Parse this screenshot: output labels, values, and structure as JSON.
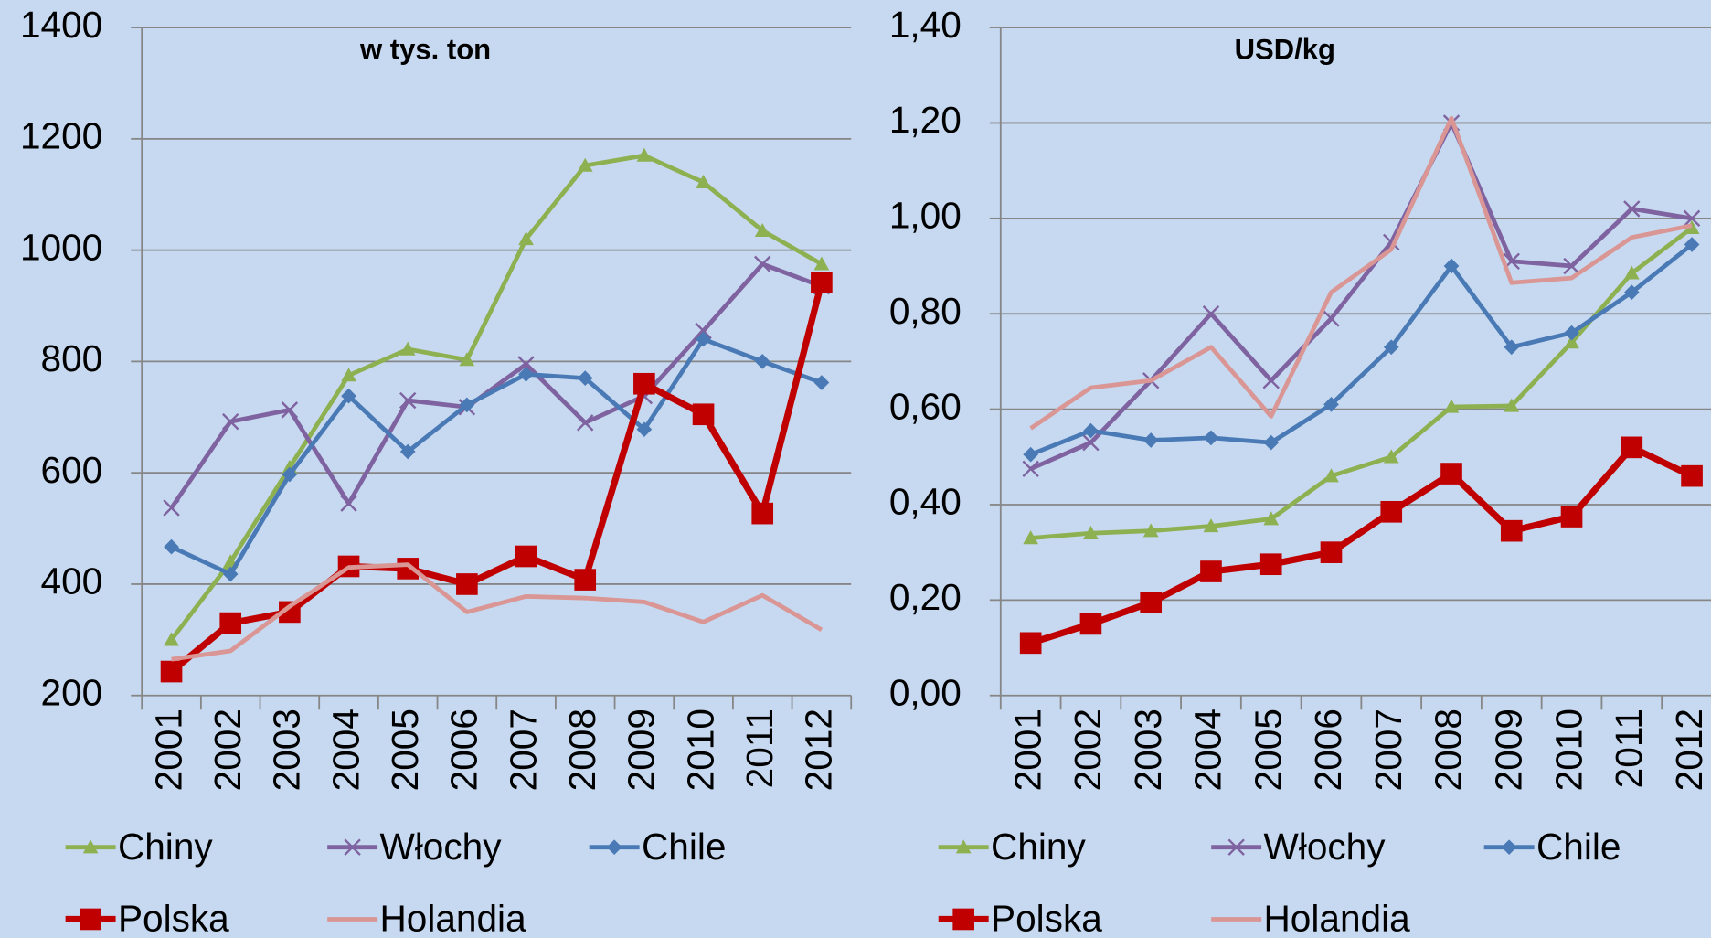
{
  "chart_data": [
    {
      "type": "line",
      "title": "w tys. ton",
      "categories": [
        "2001",
        "2002",
        "2003",
        "2004",
        "2005",
        "2006",
        "2007",
        "2008",
        "2009",
        "2010",
        "2011",
        "2012"
      ],
      "ylim": [
        200,
        1400
      ],
      "yticks": [
        200,
        400,
        600,
        800,
        1000,
        1200,
        1400
      ],
      "grid": true,
      "series": [
        {
          "name": "Chiny",
          "color": "#8db050",
          "marker": "triangle",
          "values": [
            300,
            440,
            610,
            775,
            822,
            803,
            1020,
            1152,
            1170,
            1122,
            1035,
            975
          ]
        },
        {
          "name": "Włochy",
          "color": "#7f62a0",
          "marker": "x",
          "values": [
            537,
            692,
            713,
            545,
            730,
            718,
            795,
            690,
            738,
            855,
            975,
            935
          ]
        },
        {
          "name": "Chile",
          "color": "#4a7ab5",
          "marker": "diamond",
          "values": [
            467,
            418,
            597,
            738,
            638,
            722,
            777,
            770,
            678,
            840,
            800,
            762
          ]
        },
        {
          "name": "Polska",
          "color": "#c00000",
          "marker": "square",
          "values": [
            243,
            330,
            350,
            432,
            428,
            400,
            450,
            408,
            760,
            705,
            527,
            942
          ]
        },
        {
          "name": "Holandia",
          "color": "#d99694",
          "marker": "none",
          "values": [
            265,
            280,
            360,
            430,
            435,
            350,
            378,
            375,
            368,
            332,
            380,
            318
          ]
        }
      ]
    },
    {
      "type": "line",
      "title": "USD/kg",
      "categories": [
        "2001",
        "2002",
        "2003",
        "2004",
        "2005",
        "2006",
        "2007",
        "2008",
        "2009",
        "2010",
        "2011",
        "2012"
      ],
      "ylim": [
        0,
        1.4
      ],
      "yticks": [
        {
          "value": 0,
          "label": "0,00"
        },
        {
          "value": 0.2,
          "label": "0,20"
        },
        {
          "value": 0.4,
          "label": "0,40"
        },
        {
          "value": 0.6,
          "label": "0,60"
        },
        {
          "value": 0.8,
          "label": "0,80"
        },
        {
          "value": 1.0,
          "label": "1,00"
        },
        {
          "value": 1.2,
          "label": "1,20"
        },
        {
          "value": 1.4,
          "label": "1,40"
        }
      ],
      "grid": true,
      "series": [
        {
          "name": "Chiny",
          "color": "#8db050",
          "marker": "triangle",
          "values": [
            0.33,
            0.34,
            0.345,
            0.355,
            0.37,
            0.46,
            0.5,
            0.605,
            0.607,
            0.74,
            0.885,
            0.98
          ]
        },
        {
          "name": "Włochy",
          "color": "#7f62a0",
          "marker": "x",
          "values": [
            0.475,
            0.53,
            0.66,
            0.8,
            0.66,
            0.79,
            0.95,
            1.2,
            0.91,
            0.9,
            1.02,
            1.0
          ]
        },
        {
          "name": "Chile",
          "color": "#4a7ab5",
          "marker": "diamond",
          "values": [
            0.505,
            0.555,
            0.535,
            0.54,
            0.53,
            0.61,
            0.73,
            0.9,
            0.73,
            0.76,
            0.845,
            0.945
          ]
        },
        {
          "name": "Polska",
          "color": "#c00000",
          "marker": "square",
          "values": [
            0.11,
            0.15,
            0.195,
            0.26,
            0.275,
            0.3,
            0.385,
            0.465,
            0.345,
            0.375,
            0.52,
            0.46
          ]
        },
        {
          "name": "Holandia",
          "color": "#d99694",
          "marker": "none",
          "values": [
            0.56,
            0.645,
            0.66,
            0.73,
            0.585,
            0.845,
            0.935,
            1.21,
            0.865,
            0.875,
            0.96,
            0.985
          ]
        }
      ]
    }
  ]
}
